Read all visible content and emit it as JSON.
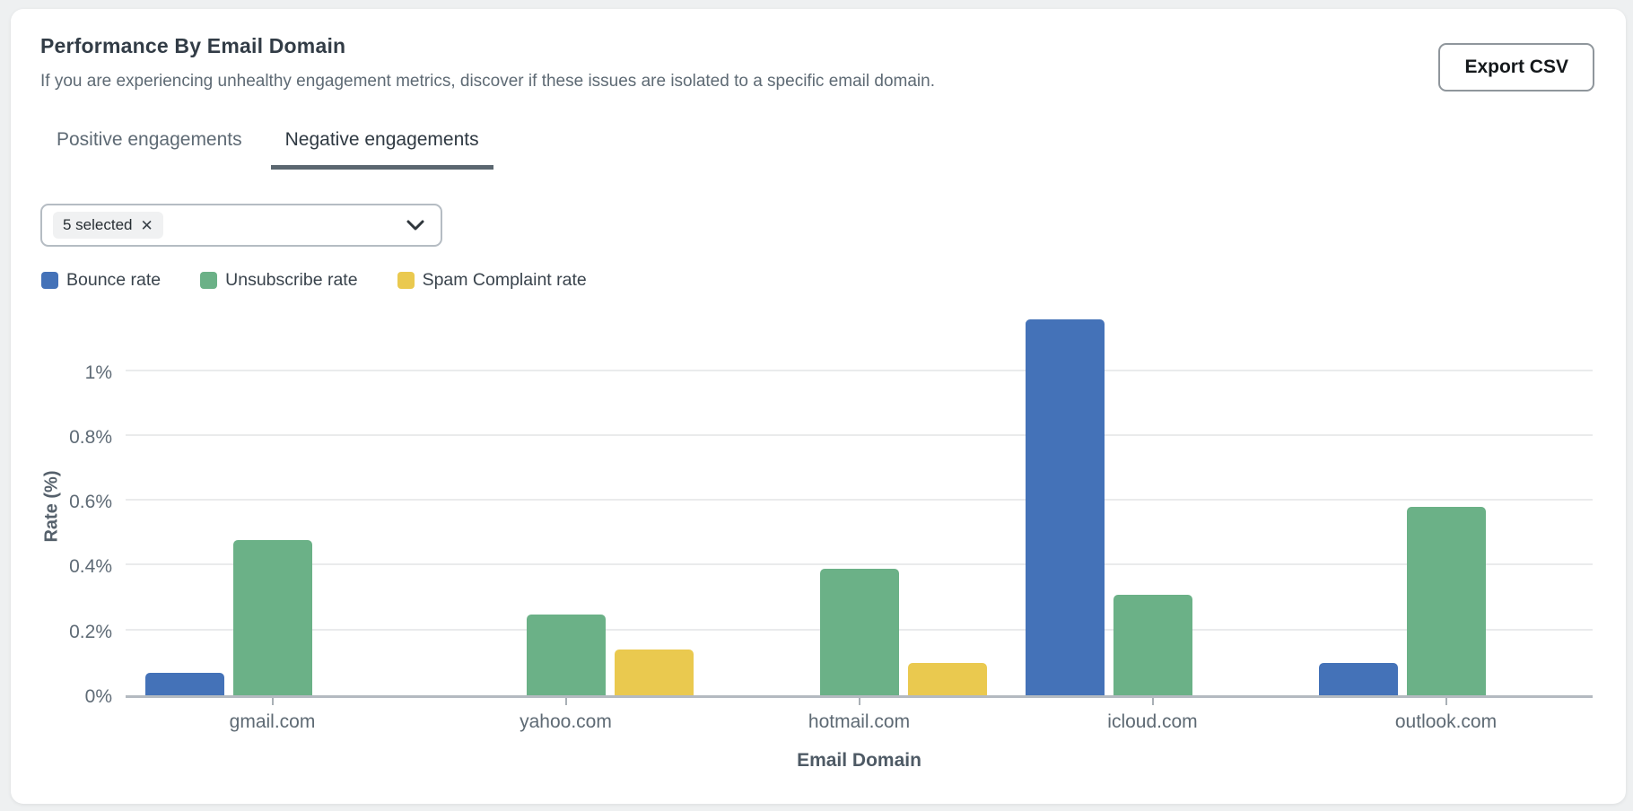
{
  "card": {
    "title": "Performance By Email Domain",
    "subtitle": "If you are experiencing unhealthy engagement metrics, discover if these issues are isolated to a specific email domain.",
    "export_button_label": "Export CSV"
  },
  "tabs": [
    {
      "label": "Positive engagements",
      "active": false
    },
    {
      "label": "Negative engagements",
      "active": true
    }
  ],
  "filter": {
    "chip_label": "5 selected",
    "chip_remove_icon": "✕"
  },
  "legend": [
    {
      "label": "Bounce rate",
      "color": "#4472B8"
    },
    {
      "label": "Unsubscribe rate",
      "color": "#6BB187"
    },
    {
      "label": "Spam Complaint rate",
      "color": "#EAC94F"
    }
  ],
  "chart_data": {
    "type": "bar",
    "title": "",
    "categories": [
      "gmail.com",
      "yahoo.com",
      "hotmail.com",
      "icloud.com",
      "outlook.com"
    ],
    "series": [
      {
        "name": "Bounce rate",
        "color": "#4472B8",
        "values": [
          0.07,
          0,
          0,
          1.16,
          0.1
        ]
      },
      {
        "name": "Unsubscribe rate",
        "color": "#6BB187",
        "values": [
          0.48,
          0.25,
          0.39,
          0.31,
          0.58
        ]
      },
      {
        "name": "Spam Complaint rate",
        "color": "#EAC94F",
        "values": [
          0,
          0.14,
          0.1,
          0,
          0
        ]
      }
    ],
    "xlabel": "Email Domain",
    "ylabel": "Rate (%)",
    "y_ticks": [
      {
        "label": "0%",
        "value": 0
      },
      {
        "label": "0.2%",
        "value": 0.2
      },
      {
        "label": "0.4%",
        "value": 0.4
      },
      {
        "label": "0.6%",
        "value": 0.6
      },
      {
        "label": "0.8%",
        "value": 0.8
      },
      {
        "label": "1%",
        "value": 1.0
      }
    ],
    "ylim": [
      0,
      1.19
    ],
    "grid": true,
    "legend_position": "top-left"
  }
}
